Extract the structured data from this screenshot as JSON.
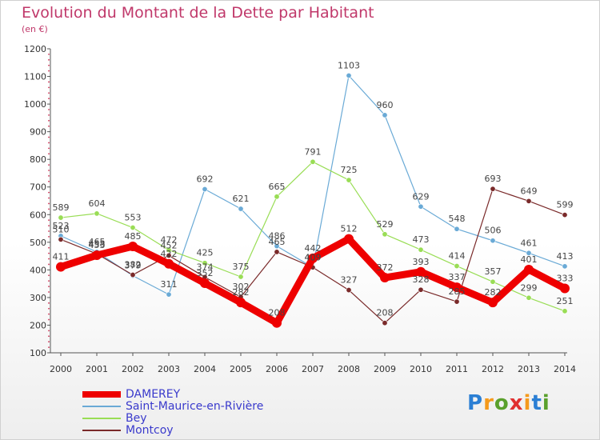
{
  "header": {
    "title": "Evolution du Montant de la Dette par Habitant",
    "unit": "(en €)"
  },
  "logo": {
    "text": "Proxiti",
    "colors": [
      "#2b7fd4",
      "#f59a1c",
      "#5aa02c",
      "#e03030",
      "#f59a1c",
      "#2b7fd4",
      "#5aa02c"
    ]
  },
  "chart_data": {
    "type": "line",
    "title": "Evolution du Montant de la Dette par Habitant",
    "ylabel": "(en €)",
    "xlabel": "",
    "ylim": [
      100,
      1200
    ],
    "yticks": [
      100,
      200,
      300,
      400,
      500,
      600,
      700,
      800,
      900,
      1000,
      1100,
      1200
    ],
    "x": [
      "2000",
      "2001",
      "2002",
      "2003",
      "2004",
      "2005",
      "2006",
      "2007",
      "2008",
      "2009",
      "2010",
      "2011",
      "2012",
      "2013",
      "2014"
    ],
    "grid": false,
    "legend_position": "bottom-left",
    "series": [
      {
        "name": "DAMEREY",
        "color": "#ee0000",
        "values": [
          411,
          453,
          485,
          422,
          352,
          282,
          208,
          442,
          512,
          372,
          393,
          337,
          282,
          401,
          333
        ]
      },
      {
        "name": "Saint-Maurice-en-Rivière",
        "color": "#6aaad6",
        "values": [
          523,
          465,
          379,
          311,
          692,
          621,
          486,
          409,
          1103,
          960,
          629,
          548,
          506,
          461,
          413
        ]
      },
      {
        "name": "Bey",
        "color": "#99dd55",
        "values": [
          589,
          604,
          553,
          472,
          425,
          375,
          665,
          791,
          725,
          529,
          473,
          414,
          357,
          299,
          251
        ]
      },
      {
        "name": "Montcoy",
        "color": "#7a2a2a",
        "values": [
          510,
          458,
          382,
          452,
          374,
          302,
          465,
          409,
          327,
          208,
          328,
          285,
          693,
          649,
          599
        ]
      }
    ]
  }
}
